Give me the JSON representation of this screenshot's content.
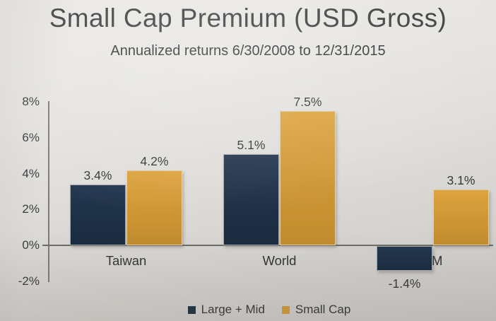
{
  "title": "Small Cap Premium (USD Gross)",
  "subtitle": "Annualized returns 6/30/2008 to 12/31/2015",
  "chart_data": {
    "type": "bar",
    "categories": [
      "Taiwan",
      "World",
      "EM"
    ],
    "visible_category_labels": [
      "Taiwan",
      "World",
      "M"
    ],
    "series": [
      {
        "name": "Large + Mid",
        "color": "#203448",
        "values": [
          3.4,
          5.1,
          -1.4
        ],
        "value_labels": [
          "3.4%",
          "5.1%",
          "-1.4%"
        ]
      },
      {
        "name": "Small Cap",
        "color": "#d09a3a",
        "values": [
          4.2,
          7.5,
          3.1
        ],
        "value_labels": [
          "4.2%",
          "7.5%",
          "3.1%"
        ]
      }
    ],
    "ylim": [
      -2,
      8
    ],
    "ytick_values": [
      8,
      6,
      4,
      2,
      0,
      -2
    ],
    "ytick_labels": [
      "8%",
      "6%",
      "4%",
      "2%",
      "0%",
      "-2%"
    ],
    "grid": false,
    "legend_position": "bottom"
  },
  "legend": {
    "items": [
      {
        "label": "Large + Mid",
        "color": "#203448"
      },
      {
        "label": "Small Cap",
        "color": "#d09a3a"
      }
    ]
  },
  "colors": {
    "large_mid": "#203448",
    "small_cap": "#d09a3a",
    "axis_line": "#6f6d68",
    "text": "#39393b"
  }
}
